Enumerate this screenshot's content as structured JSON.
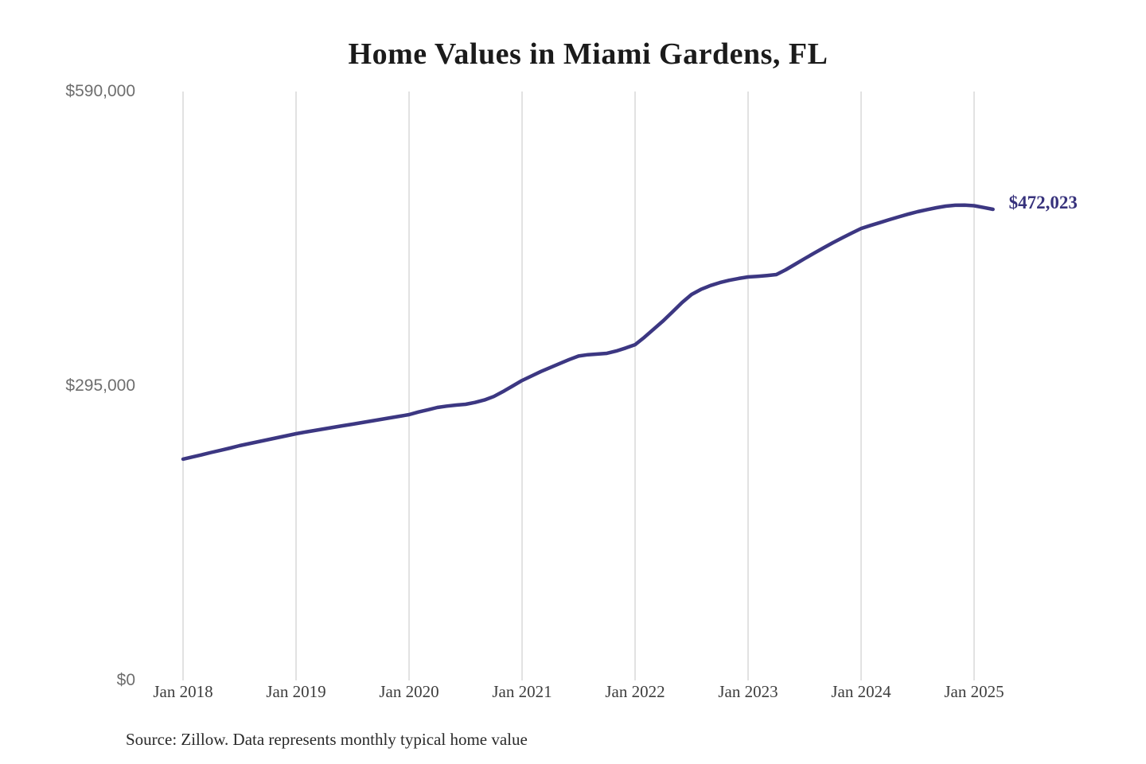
{
  "title": "Home Values in Miami Gardens, FL",
  "source_note": "Source: Zillow. Data represents monthly typical home value",
  "annotation": {
    "current_value_label": "$472,023"
  },
  "colors": {
    "line": "#3c3782",
    "annotation_text": "#37327c",
    "grid": "#c4c4c4",
    "y_tick_text": "#6e6e6e",
    "x_tick_text": "#3d3d3d",
    "title_text": "#1b1b1b",
    "source_text": "#2a2a2a",
    "background": "#ffffff"
  },
  "chart_data": {
    "type": "line",
    "title": "Home Values in Miami Gardens, FL",
    "series_name": "Monthly typical home value",
    "x_start": "2018-01",
    "x_end": "2025-03",
    "x_interval": "monthly",
    "x_tick_labels": [
      "Jan 2018",
      "Jan 2019",
      "Jan 2020",
      "Jan 2021",
      "Jan 2022",
      "Jan 2023",
      "Jan 2024",
      "Jan 2025"
    ],
    "y_ticks": [
      {
        "value": 0,
        "label": "$0"
      },
      {
        "value": 295000,
        "label": "$295,000"
      },
      {
        "value": 590000,
        "label": "$590,000"
      }
    ],
    "ylim": [
      0,
      590000
    ],
    "grid": "vertical",
    "legend": "none",
    "end_label": "$472,023",
    "end_value": 472023,
    "values": [
      221700,
      223900,
      226100,
      228400,
      230600,
      232800,
      235200,
      237200,
      239200,
      241200,
      243200,
      245200,
      247200,
      248800,
      250400,
      252000,
      253600,
      255200,
      256700,
      258300,
      259900,
      261500,
      263100,
      264700,
      266300,
      268900,
      271200,
      273500,
      274800,
      275900,
      276700,
      278500,
      281000,
      284500,
      289500,
      295000,
      300500,
      305000,
      309500,
      313500,
      317500,
      321500,
      325000,
      326300,
      327000,
      327700,
      330000,
      333000,
      336400,
      343900,
      352200,
      360400,
      369500,
      378700,
      386700,
      391800,
      395600,
      398600,
      400900,
      402700,
      404200,
      404900,
      405700,
      406600,
      411400,
      417000,
      422600,
      428000,
      433300,
      438500,
      443400,
      448200,
      452800,
      455800,
      458700,
      461600,
      464400,
      467100,
      469600,
      471700,
      473600,
      475200,
      476100,
      476200,
      475600,
      473800,
      472023
    ]
  }
}
